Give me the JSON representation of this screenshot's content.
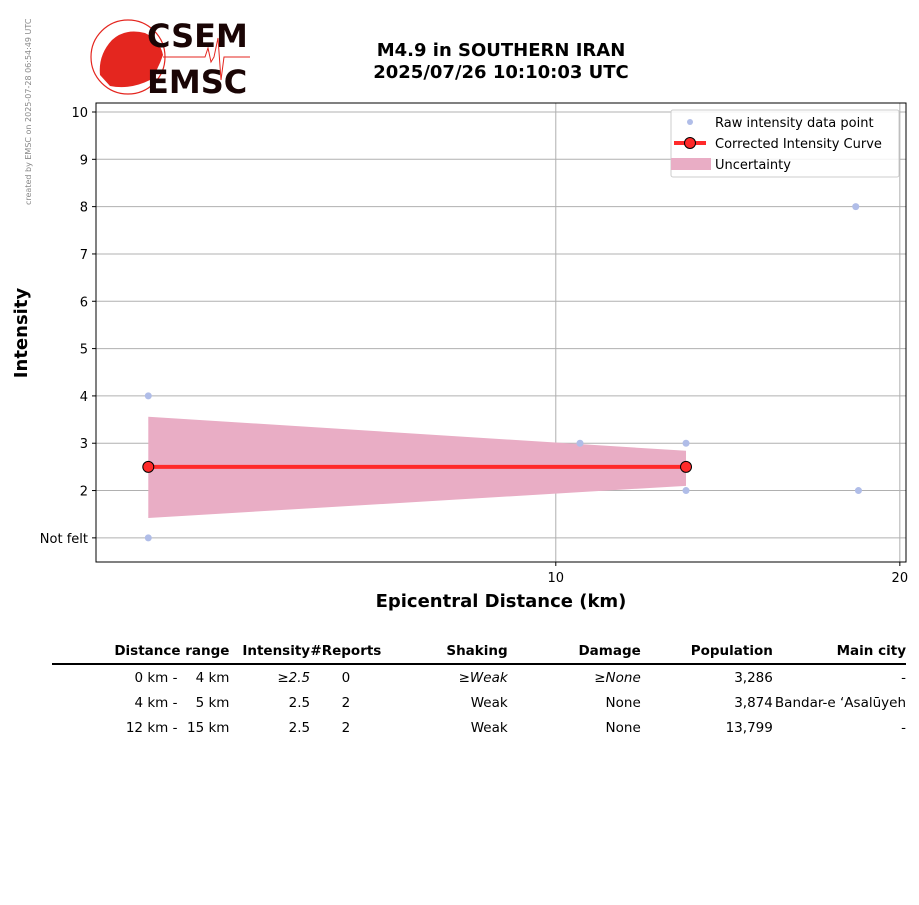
{
  "credit": "created by EMSC on 2025-07-28 06:54:49 UTC",
  "logo": {
    "top": "CSEM",
    "bottom": "EMSC",
    "color": "#e4261f"
  },
  "title_line1": "M4.9 in SOUTHERN IRAN",
  "title_line2": "2025/07/26 10:10:03 UTC",
  "chart_data": {
    "type": "scatter",
    "title": "M4.9 in SOUTHERN IRAN 2025/07/26 10:10:03 UTC",
    "xlabel": "Epicentral Distance (km)",
    "ylabel": "Intensity",
    "xscale": "log",
    "xlim": [
      3.96,
      20.25
    ],
    "ylim": [
      0.49,
      10.19
    ],
    "xticks": [
      {
        "value": 10,
        "label": "10"
      },
      {
        "value": 20,
        "label": "20"
      }
    ],
    "yticks": [
      {
        "value": 1,
        "label": "Not felt"
      },
      {
        "value": 2,
        "label": "2"
      },
      {
        "value": 3,
        "label": "3"
      },
      {
        "value": 4,
        "label": "4"
      },
      {
        "value": 5,
        "label": "5"
      },
      {
        "value": 6,
        "label": "6"
      },
      {
        "value": 7,
        "label": "7"
      },
      {
        "value": 8,
        "label": "8"
      },
      {
        "value": 9,
        "label": "9"
      },
      {
        "value": 10,
        "label": "10"
      }
    ],
    "grid": true,
    "legend_position": "top-right",
    "series": [
      {
        "name": "Raw intensity data point",
        "kind": "scatter",
        "color": "#b0bde8",
        "points": [
          [
            4.4,
            4
          ],
          [
            4.4,
            1
          ],
          [
            10.5,
            3
          ],
          [
            13.0,
            3
          ],
          [
            13.0,
            2
          ],
          [
            18.3,
            8
          ],
          [
            18.4,
            2
          ]
        ]
      },
      {
        "name": "Corrected Intensity Curve",
        "kind": "line",
        "color": "#ff2a2a",
        "points": [
          [
            4.4,
            2.5
          ],
          [
            13.0,
            2.5
          ]
        ]
      },
      {
        "name": "Uncertainty",
        "kind": "band",
        "color": "#e9adc5",
        "x": [
          4.4,
          13.0
        ],
        "upper": [
          3.56,
          2.84
        ],
        "lower": [
          1.42,
          2.1
        ]
      }
    ]
  },
  "table": {
    "headers": [
      "Distance range",
      "Intensity",
      "#Reports",
      "Shaking",
      "Damage",
      "Population",
      "Main city"
    ],
    "rows": [
      {
        "from": "0 km -",
        "to": "4 km",
        "intensity": "≥2.5",
        "reports": "0",
        "shaking": "≥Weak",
        "damage": "≥None",
        "population": "3,286",
        "city": "-",
        "italic": true
      },
      {
        "from": "4 km -",
        "to": "5 km",
        "intensity": "2.5",
        "reports": "2",
        "shaking": "Weak",
        "damage": "None",
        "population": "3,874",
        "city": "Bandar-e ‘Asalūyeh",
        "italic": false
      },
      {
        "from": "12 km -",
        "to": "15 km",
        "intensity": "2.5",
        "reports": "2",
        "shaking": "Weak",
        "damage": "None",
        "population": "13,799",
        "city": "-",
        "italic": false
      }
    ]
  }
}
